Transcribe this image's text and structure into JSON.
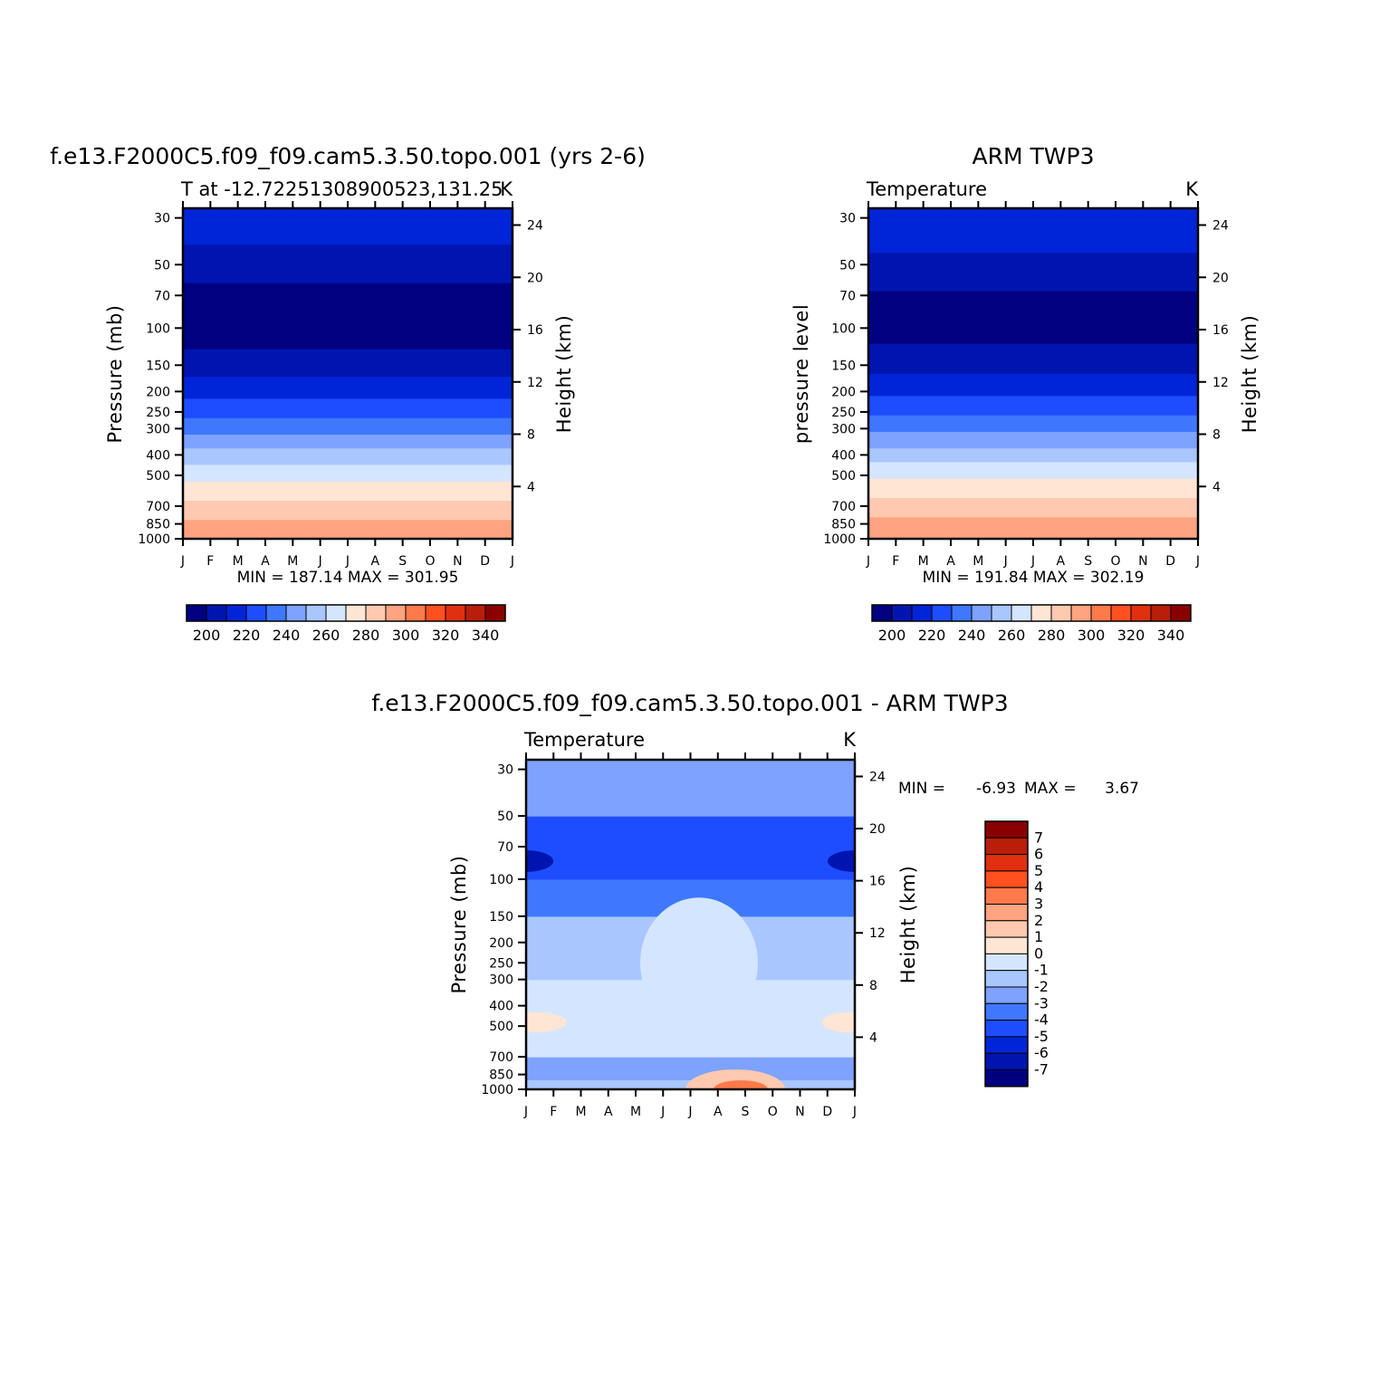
{
  "palette": {
    "abs": [
      "#000080",
      "#0015b0",
      "#0025d8",
      "#1e4dff",
      "#3f78ff",
      "#7ea2ff",
      "#a9c6ff",
      "#d4e6ff",
      "#ffe6d4",
      "#ffc9b0",
      "#ffa380",
      "#ff7a4a",
      "#ff5020",
      "#e03010",
      "#b81e0a",
      "#8a0000"
    ],
    "diff": [
      "#000080",
      "#0015b0",
      "#0025d8",
      "#1e4dff",
      "#3f78ff",
      "#7ea2ff",
      "#a9c6ff",
      "#d4e6ff",
      "#ffe6d4",
      "#ffc9b0",
      "#ffa380",
      "#ff7a4a",
      "#ff5020",
      "#e03010",
      "#b81e0a",
      "#8a0000"
    ]
  },
  "chart_data": [
    {
      "type": "heatmap",
      "title": "f.e13.F2000C5.f09_f09.cam5.3.50.topo.001 (yrs 2-6)",
      "subtitle_left": "T at -12.72251308900523,131.25",
      "subtitle_right": "K",
      "xlabel": "",
      "ylabel": "Pressure (mb)",
      "y2label": "Height (km)",
      "x_ticks": [
        "J",
        "F",
        "M",
        "A",
        "M",
        "J",
        "J",
        "A",
        "S",
        "O",
        "N",
        "D",
        "J"
      ],
      "y_ticks": [
        "30",
        "50",
        "70",
        "100",
        "150",
        "200",
        "250",
        "300",
        "400",
        "500",
        "700",
        "850",
        "1000"
      ],
      "y2_ticks": [
        "24",
        "20",
        "16",
        "12",
        "8",
        "4"
      ],
      "stats": "MIN = 187.14 MAX = 301.95",
      "min": 187.14,
      "max": 301.95,
      "colorbar_labels": [
        "200",
        "220",
        "240",
        "260",
        "280",
        "300",
        "320",
        "340"
      ],
      "colorbar_levels": [
        190,
        200,
        210,
        220,
        230,
        240,
        250,
        260,
        270,
        280,
        290,
        300,
        310,
        320,
        330,
        340,
        350
      ],
      "vertical_profile_K": {
        "1000": 300,
        "850": 293,
        "700": 284,
        "500": 268,
        "400": 255,
        "300": 238,
        "250": 228,
        "200": 218,
        "150": 206,
        "100": 194,
        "70": 196,
        "50": 205,
        "30": 216
      }
    },
    {
      "type": "heatmap",
      "title": "ARM TWP3",
      "subtitle_left": "Temperature",
      "subtitle_right": "K",
      "xlabel": "",
      "ylabel": "pressure level",
      "y2label": "Height (km)",
      "x_ticks": [
        "J",
        "F",
        "M",
        "A",
        "M",
        "J",
        "J",
        "A",
        "S",
        "O",
        "N",
        "D",
        "J"
      ],
      "y_ticks": [
        "30",
        "50",
        "70",
        "100",
        "150",
        "200",
        "250",
        "300",
        "400",
        "500",
        "700",
        "850",
        "1000"
      ],
      "y2_ticks": [
        "24",
        "20",
        "16",
        "12",
        "8",
        "4"
      ],
      "stats": "MIN = 191.84 MAX = 302.19",
      "min": 191.84,
      "max": 302.19,
      "colorbar_labels": [
        "200",
        "220",
        "240",
        "260",
        "280",
        "300",
        "320",
        "340"
      ],
      "colorbar_levels": [
        190,
        200,
        210,
        220,
        230,
        240,
        250,
        260,
        270,
        280,
        290,
        300,
        310,
        320,
        330,
        340,
        350
      ],
      "vertical_profile_K": {
        "1000": 301,
        "850": 294,
        "700": 285,
        "500": 269,
        "400": 256,
        "300": 239,
        "250": 229,
        "200": 219,
        "150": 207,
        "100": 196,
        "70": 198,
        "50": 207,
        "30": 218
      }
    },
    {
      "type": "heatmap",
      "title": "f.e13.F2000C5.f09_f09.cam5.3.50.topo.001 - ARM TWP3",
      "subtitle_left": "Temperature",
      "subtitle_right": "K",
      "xlabel": "",
      "ylabel": "Pressure (mb)",
      "y2label": "Height (km)",
      "x_ticks": [
        "J",
        "F",
        "M",
        "A",
        "M",
        "J",
        "J",
        "A",
        "S",
        "O",
        "N",
        "D",
        "J"
      ],
      "y_ticks": [
        "30",
        "50",
        "70",
        "100",
        "150",
        "200",
        "250",
        "300",
        "400",
        "500",
        "700",
        "850",
        "1000"
      ],
      "y2_ticks": [
        "24",
        "20",
        "16",
        "12",
        "8",
        "4"
      ],
      "stats_min_label": "MIN =",
      "stats_min": "-6.93",
      "stats_max_label": "MAX =",
      "stats_max": "3.67",
      "min": -6.93,
      "max": 3.67,
      "colorbar_labels": [
        "7",
        "6",
        "5",
        "4",
        "3",
        "2",
        "1",
        "0",
        "-1",
        "-2",
        "-3",
        "-4",
        "-5",
        "-6",
        "-7"
      ],
      "colorbar_levels": [
        -8,
        -7,
        -6,
        -5,
        -4,
        -3,
        -2,
        -1,
        0,
        1,
        2,
        3,
        4,
        5,
        6,
        7,
        8
      ]
    }
  ]
}
